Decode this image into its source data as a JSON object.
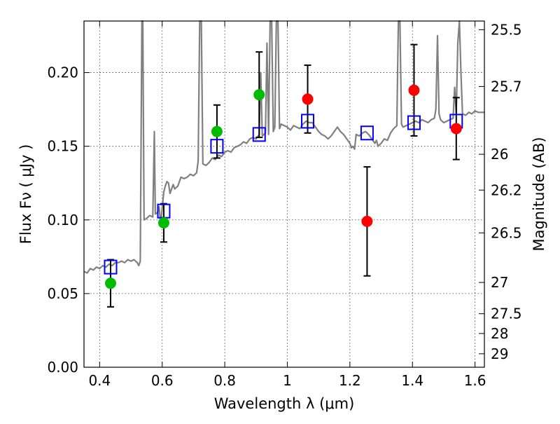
{
  "chart_data": {
    "type": "scatter",
    "title": "",
    "xlabel": "Wavelength  λ (μm)",
    "ylabel": "Flux  Fν  ( μJy )",
    "y2label": "Magnitude (AB)",
    "xlim": [
      0.35,
      1.63
    ],
    "ylim": [
      0.0,
      0.235
    ],
    "grid": true,
    "x_ticks": [
      {
        "value": 0.4,
        "label": "0.4"
      },
      {
        "value": 0.6,
        "label": "0.6"
      },
      {
        "value": 0.8,
        "label": "0.8"
      },
      {
        "value": 1.0,
        "label": "1"
      },
      {
        "value": 1.2,
        "label": "1.2"
      },
      {
        "value": 1.4,
        "label": "1.4"
      },
      {
        "value": 1.6,
        "label": "1.6"
      }
    ],
    "y_ticks": [
      {
        "value": 0.0,
        "label": "0.00"
      },
      {
        "value": 0.05,
        "label": "0.05"
      },
      {
        "value": 0.1,
        "label": "0.10"
      },
      {
        "value": 0.15,
        "label": "0.15"
      },
      {
        "value": 0.2,
        "label": "0.20"
      }
    ],
    "y2_ticks": [
      {
        "mag": 25.5,
        "label": "25.5"
      },
      {
        "mag": 25.7,
        "label": "25.7"
      },
      {
        "mag": 26.0,
        "label": "26"
      },
      {
        "mag": 26.2,
        "label": "26.2"
      },
      {
        "mag": 26.5,
        "label": "26.5"
      },
      {
        "mag": 27.0,
        "label": "27"
      },
      {
        "mag": 27.5,
        "label": "27.5"
      },
      {
        "mag": 28.0,
        "label": "28"
      },
      {
        "mag": 29.0,
        "label": "29"
      }
    ],
    "series": [
      {
        "kind": "model-spectrum",
        "color": "#808080",
        "points": [
          [
            0.35,
            0.065
          ],
          [
            0.36,
            0.064
          ],
          [
            0.37,
            0.067
          ],
          [
            0.38,
            0.066
          ],
          [
            0.39,
            0.068
          ],
          [
            0.4,
            0.067
          ],
          [
            0.41,
            0.069
          ],
          [
            0.42,
            0.068
          ],
          [
            0.43,
            0.07
          ],
          [
            0.44,
            0.069
          ],
          [
            0.45,
            0.071
          ],
          [
            0.46,
            0.071
          ],
          [
            0.47,
            0.072
          ],
          [
            0.48,
            0.071
          ],
          [
            0.49,
            0.073
          ],
          [
            0.5,
            0.072
          ],
          [
            0.51,
            0.073
          ],
          [
            0.52,
            0.071
          ],
          [
            0.525,
            0.069
          ],
          [
            0.53,
            0.072
          ],
          [
            0.535,
            0.235
          ],
          [
            0.538,
            0.235
          ],
          [
            0.542,
            0.1
          ],
          [
            0.55,
            0.101
          ],
          [
            0.56,
            0.103
          ],
          [
            0.57,
            0.102
          ],
          [
            0.575,
            0.16
          ],
          [
            0.578,
            0.104
          ],
          [
            0.585,
            0.105
          ],
          [
            0.59,
            0.109
          ],
          [
            0.595,
            0.097
          ],
          [
            0.6,
            0.108
          ],
          [
            0.605,
            0.119
          ],
          [
            0.61,
            0.123
          ],
          [
            0.615,
            0.126
          ],
          [
            0.62,
            0.125
          ],
          [
            0.625,
            0.118
          ],
          [
            0.63,
            0.121
          ],
          [
            0.635,
            0.124
          ],
          [
            0.64,
            0.121
          ],
          [
            0.65,
            0.123
          ],
          [
            0.66,
            0.129
          ],
          [
            0.67,
            0.128
          ],
          [
            0.68,
            0.129
          ],
          [
            0.69,
            0.131
          ],
          [
            0.7,
            0.13
          ],
          [
            0.71,
            0.132
          ],
          [
            0.715,
            0.14
          ],
          [
            0.72,
            0.235
          ],
          [
            0.725,
            0.235
          ],
          [
            0.73,
            0.138
          ],
          [
            0.74,
            0.137
          ],
          [
            0.75,
            0.139
          ],
          [
            0.76,
            0.142
          ],
          [
            0.77,
            0.141
          ],
          [
            0.78,
            0.144
          ],
          [
            0.79,
            0.143
          ],
          [
            0.8,
            0.146
          ],
          [
            0.81,
            0.147
          ],
          [
            0.82,
            0.146
          ],
          [
            0.83,
            0.149
          ],
          [
            0.84,
            0.15
          ],
          [
            0.85,
            0.151
          ],
          [
            0.86,
            0.153
          ],
          [
            0.87,
            0.152
          ],
          [
            0.88,
            0.155
          ],
          [
            0.89,
            0.156
          ],
          [
            0.9,
            0.155
          ],
          [
            0.91,
            0.158
          ],
          [
            0.915,
            0.2
          ],
          [
            0.92,
            0.157
          ],
          [
            0.93,
            0.159
          ],
          [
            0.935,
            0.22
          ],
          [
            0.94,
            0.158
          ],
          [
            0.945,
            0.235
          ],
          [
            0.95,
            0.235
          ],
          [
            0.955,
            0.16
          ],
          [
            0.96,
            0.163
          ],
          [
            0.965,
            0.235
          ],
          [
            0.97,
            0.235
          ],
          [
            0.975,
            0.162
          ],
          [
            0.98,
            0.165
          ],
          [
            0.99,
            0.164
          ],
          [
            1.0,
            0.163
          ],
          [
            1.01,
            0.161
          ],
          [
            1.02,
            0.164
          ],
          [
            1.03,
            0.163
          ],
          [
            1.04,
            0.162
          ],
          [
            1.05,
            0.165
          ],
          [
            1.06,
            0.167
          ],
          [
            1.07,
            0.166
          ],
          [
            1.08,
            0.166
          ],
          [
            1.09,
            0.163
          ],
          [
            1.1,
            0.16
          ],
          [
            1.11,
            0.158
          ],
          [
            1.12,
            0.157
          ],
          [
            1.13,
            0.155
          ],
          [
            1.14,
            0.157
          ],
          [
            1.15,
            0.16
          ],
          [
            1.16,
            0.163
          ],
          [
            1.17,
            0.16
          ],
          [
            1.18,
            0.158
          ],
          [
            1.19,
            0.155
          ],
          [
            1.2,
            0.152
          ],
          [
            1.205,
            0.149
          ],
          [
            1.21,
            0.15
          ],
          [
            1.215,
            0.148
          ],
          [
            1.22,
            0.158
          ],
          [
            1.23,
            0.157
          ],
          [
            1.24,
            0.159
          ],
          [
            1.25,
            0.16
          ],
          [
            1.26,
            0.158
          ],
          [
            1.27,
            0.155
          ],
          [
            1.28,
            0.152
          ],
          [
            1.285,
            0.154
          ],
          [
            1.29,
            0.15
          ],
          [
            1.3,
            0.152
          ],
          [
            1.31,
            0.155
          ],
          [
            1.32,
            0.154
          ],
          [
            1.33,
            0.159
          ],
          [
            1.34,
            0.162
          ],
          [
            1.35,
            0.164
          ],
          [
            1.355,
            0.235
          ],
          [
            1.36,
            0.235
          ],
          [
            1.365,
            0.165
          ],
          [
            1.37,
            0.163
          ],
          [
            1.38,
            0.164
          ],
          [
            1.39,
            0.165
          ],
          [
            1.4,
            0.166
          ],
          [
            1.41,
            0.167
          ],
          [
            1.42,
            0.166
          ],
          [
            1.43,
            0.168
          ],
          [
            1.44,
            0.167
          ],
          [
            1.45,
            0.166
          ],
          [
            1.46,
            0.168
          ],
          [
            1.47,
            0.169
          ],
          [
            1.475,
            0.175
          ],
          [
            1.48,
            0.225
          ],
          [
            1.485,
            0.172
          ],
          [
            1.49,
            0.168
          ],
          [
            1.5,
            0.166
          ],
          [
            1.51,
            0.167
          ],
          [
            1.52,
            0.168
          ],
          [
            1.53,
            0.169
          ],
          [
            1.535,
            0.19
          ],
          [
            1.54,
            0.172
          ],
          [
            1.545,
            0.22
          ],
          [
            1.55,
            0.235
          ],
          [
            1.555,
            0.2
          ],
          [
            1.56,
            0.172
          ],
          [
            1.57,
            0.171
          ],
          [
            1.58,
            0.173
          ],
          [
            1.59,
            0.172
          ],
          [
            1.6,
            0.174
          ],
          [
            1.61,
            0.173
          ],
          [
            1.62,
            0.173
          ],
          [
            1.63,
            0.173
          ]
        ]
      },
      {
        "kind": "model-photometry",
        "marker": "open-square",
        "color": "#0000ff",
        "points": [
          [
            0.435,
            0.068
          ],
          [
            0.605,
            0.106
          ],
          [
            0.775,
            0.15
          ],
          [
            0.91,
            0.158
          ],
          [
            1.065,
            0.167
          ],
          [
            1.255,
            0.159
          ],
          [
            1.405,
            0.166
          ],
          [
            1.54,
            0.167
          ]
        ]
      },
      {
        "kind": "observed",
        "marker": "filled-circle",
        "color": "#00bb00",
        "error_color": "#000000",
        "points": [
          {
            "x": 0.435,
            "y": 0.057,
            "err": 0.016
          },
          {
            "x": 0.605,
            "y": 0.098,
            "err": 0.013
          },
          {
            "x": 0.775,
            "y": 0.16,
            "err": 0.018
          },
          {
            "x": 0.91,
            "y": 0.185,
            "err": 0.029
          }
        ]
      },
      {
        "kind": "observed",
        "marker": "filled-circle",
        "color": "#ff0000",
        "error_color": "#000000",
        "points": [
          {
            "x": 1.065,
            "y": 0.182,
            "err": 0.023
          },
          {
            "x": 1.255,
            "y": 0.099,
            "err": 0.037
          },
          {
            "x": 1.405,
            "y": 0.188,
            "err": 0.031
          },
          {
            "x": 1.54,
            "y": 0.162,
            "err": 0.021
          }
        ]
      }
    ]
  }
}
